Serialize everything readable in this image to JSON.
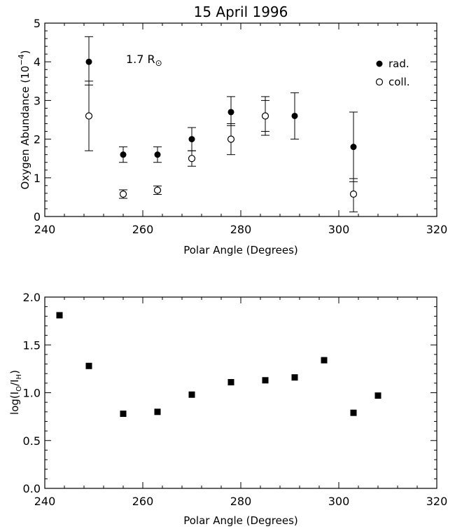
{
  "chart_data": [
    {
      "type": "scatter",
      "title": "15 April 1996",
      "xlabel": "Polar Angle (Degrees)",
      "ylabel": "Oxygen Abundance (10",
      "ylabel_exponent": "−4",
      "ylabel_close": ")",
      "xlim": [
        240,
        320
      ],
      "ylim": [
        0,
        5
      ],
      "x_ticks": [
        "240",
        "260",
        "280",
        "300",
        "320"
      ],
      "y_ticks": [
        "0",
        "1",
        "2",
        "3",
        "4",
        "5"
      ],
      "annotation": {
        "text": "1.7 R",
        "subscript": "⊙"
      },
      "legend_position": "top-right",
      "series": [
        {
          "name": "rad.",
          "marker": "filled-circle",
          "points": [
            {
              "x": 249,
              "y": 4.0,
              "err_low": 3.4,
              "err_high": 4.65
            },
            {
              "x": 256,
              "y": 1.6,
              "err_low": 1.4,
              "err_high": 1.8
            },
            {
              "x": 263,
              "y": 1.6,
              "err_low": 1.4,
              "err_high": 1.8
            },
            {
              "x": 270,
              "y": 2.0,
              "err_low": 1.7,
              "err_high": 2.3
            },
            {
              "x": 278,
              "y": 2.7,
              "err_low": 2.35,
              "err_high": 3.1
            },
            {
              "x": 285,
              "y": 2.6,
              "err_low": 2.2,
              "err_high": 3.0
            },
            {
              "x": 291,
              "y": 2.6,
              "err_low": 2.0,
              "err_high": 3.2
            },
            {
              "x": 303,
              "y": 1.8,
              "err_low": 0.9,
              "err_high": 2.7
            }
          ]
        },
        {
          "name": "coll.",
          "marker": "open-circle",
          "points": [
            {
              "x": 249,
              "y": 2.6,
              "err_low": 1.7,
              "err_high": 3.5
            },
            {
              "x": 256,
              "y": 0.58,
              "err_low": 0.47,
              "err_high": 0.69
            },
            {
              "x": 263,
              "y": 0.68,
              "err_low": 0.57,
              "err_high": 0.79
            },
            {
              "x": 270,
              "y": 1.5,
              "err_low": 1.3,
              "err_high": 1.7
            },
            {
              "x": 278,
              "y": 2.0,
              "err_low": 1.6,
              "err_high": 2.4
            },
            {
              "x": 285,
              "y": 2.6,
              "err_low": 2.1,
              "err_high": 3.1
            },
            {
              "x": 303,
              "y": 0.58,
              "err_low": 0.12,
              "err_high": 0.98
            }
          ]
        }
      ]
    },
    {
      "type": "scatter",
      "xlabel": "Polar Angle (Degrees)",
      "ylabel": "log(I",
      "ylabel_sub1": "O",
      "ylabel_mid": "/I",
      "ylabel_sub2": "H",
      "ylabel_close": ")",
      "xlim": [
        240,
        320
      ],
      "ylim": [
        0,
        2.0
      ],
      "x_ticks": [
        "240",
        "260",
        "280",
        "300",
        "320"
      ],
      "y_ticks": [
        "0.0",
        "0.5",
        "1.0",
        "1.5",
        "2.0"
      ],
      "series": [
        {
          "marker": "filled-square",
          "points": [
            {
              "x": 243,
              "y": 1.81
            },
            {
              "x": 249,
              "y": 1.28
            },
            {
              "x": 256,
              "y": 0.78
            },
            {
              "x": 263,
              "y": 0.8
            },
            {
              "x": 270,
              "y": 0.98
            },
            {
              "x": 278,
              "y": 1.11
            },
            {
              "x": 285,
              "y": 1.13
            },
            {
              "x": 291,
              "y": 1.16
            },
            {
              "x": 297,
              "y": 1.34
            },
            {
              "x": 303,
              "y": 0.79
            },
            {
              "x": 308,
              "y": 0.97
            }
          ]
        }
      ]
    }
  ]
}
